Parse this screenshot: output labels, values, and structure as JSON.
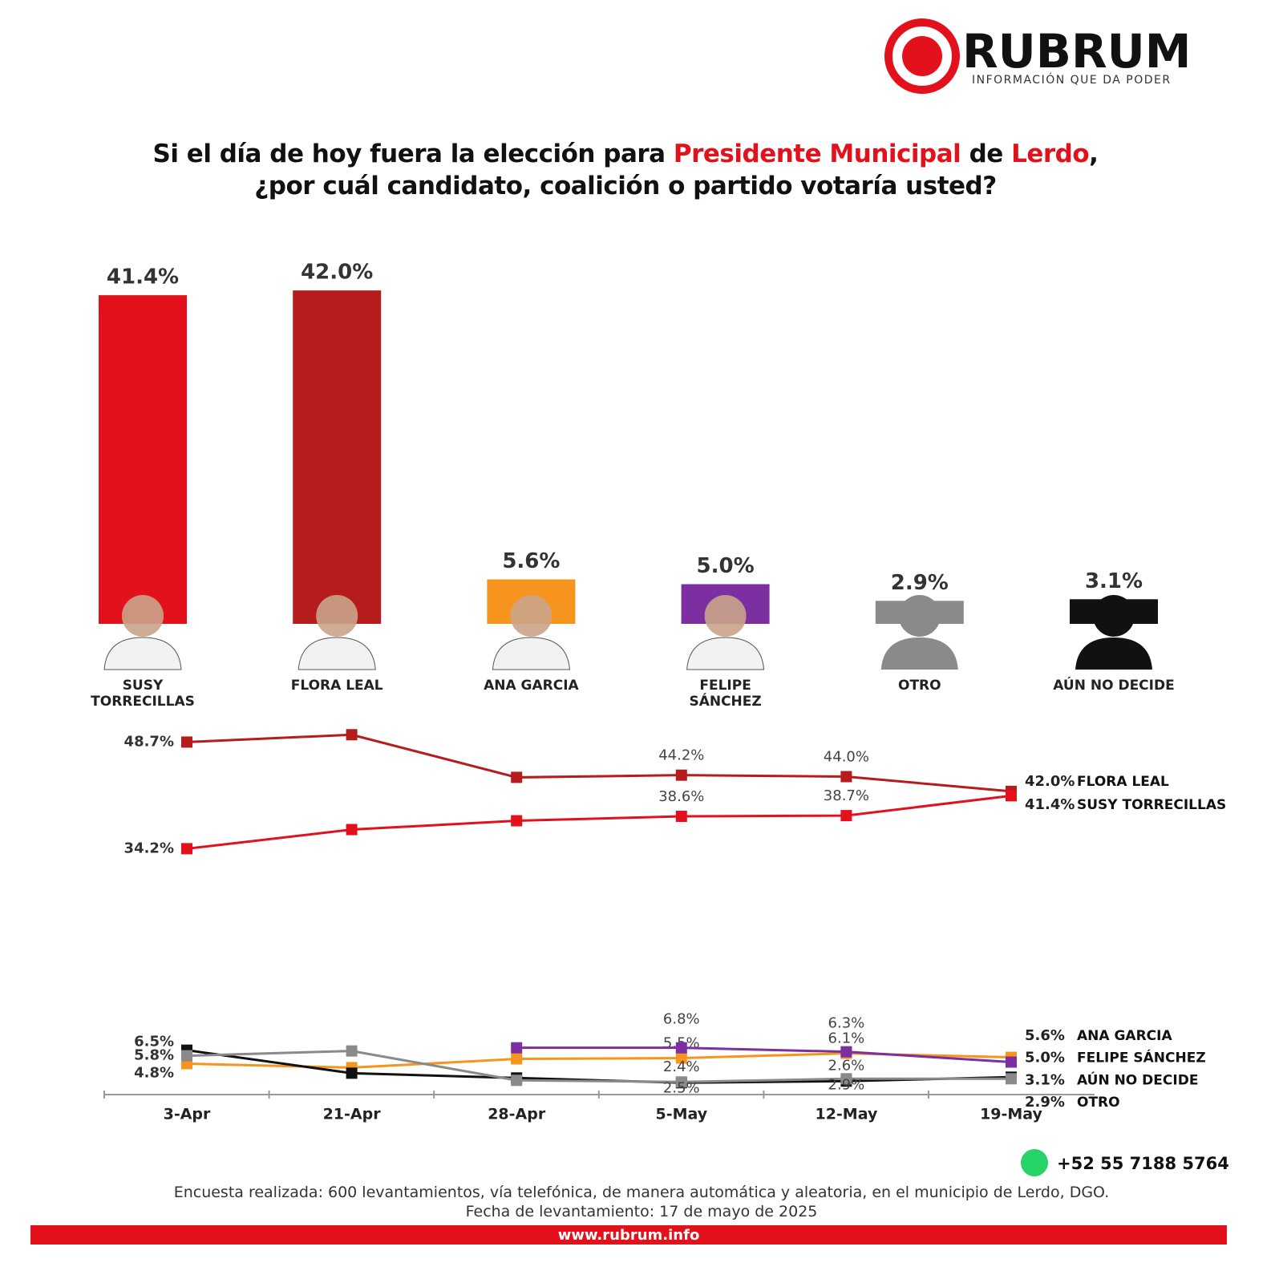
{
  "logo": {
    "name": "RUBRUM",
    "tagline": "INFORMACIÓN QUE DA PODER"
  },
  "title": {
    "line1": [
      "Si el día de hoy fuera la elección para ",
      "Presidente Municipal",
      " de ",
      "Lerdo",
      ","
    ],
    "line2": "¿por cuál candidato, coalición o partido votaría usted?"
  },
  "chart_data": [
    {
      "type": "bar",
      "categories": [
        "SUSY TORRECILLAS",
        "FLORA LEAL",
        "ANA GARCIA",
        "FELIPE SÁNCHEZ",
        "OTRO",
        "AÚN NO DECIDE"
      ],
      "values": [
        41.4,
        42.0,
        5.6,
        5.0,
        2.9,
        3.1
      ],
      "value_labels": [
        "41.4%",
        "42.0%",
        "5.6%",
        "5.0%",
        "2.9%",
        "3.1%"
      ],
      "colors": [
        "#e3111b",
        "#b71c1c",
        "#f7941d",
        "#7b2fa0",
        "#8a8a8a",
        "#111111"
      ]
    },
    {
      "type": "line",
      "categories": [
        "3-Apr",
        "21-Apr",
        "28-Apr",
        "5-May",
        "12-May",
        "19-May"
      ],
      "series": [
        {
          "name": "FLORA LEAL",
          "color": "#b71c1c",
          "values": [
            48.7,
            49.7,
            43.9,
            44.2,
            44.0,
            42.0
          ],
          "value_labels": [
            "48.7%",
            null,
            null,
            "44.2%",
            "44.0%",
            "42.0%"
          ]
        },
        {
          "name": "SUSY TORRECILLAS",
          "color": "#e3111b",
          "values": [
            34.2,
            36.8,
            38.0,
            38.6,
            38.7,
            41.4
          ],
          "value_labels": [
            "34.2%",
            null,
            null,
            "38.6%",
            "38.7%",
            "41.4%"
          ]
        },
        {
          "name": "ANA GARCIA",
          "color": "#f7941d",
          "values": [
            4.8,
            4.3,
            5.4,
            5.5,
            6.1,
            5.6
          ],
          "value_labels": [
            "4.8%",
            null,
            null,
            "5.5%",
            "6.1%",
            "5.6%"
          ]
        },
        {
          "name": "FELIPE SÁNCHEZ",
          "color": "#7b2fa0",
          "values": [
            null,
            null,
            6.8,
            6.8,
            6.3,
            5.0
          ],
          "value_labels": [
            null,
            null,
            null,
            "6.8%",
            "6.3%",
            "5.0%"
          ]
        },
        {
          "name": "AÚN NO DECIDE",
          "color": "#111111",
          "values": [
            6.5,
            3.6,
            3.0,
            2.4,
            2.6,
            3.1
          ],
          "value_labels": [
            "6.5%",
            null,
            null,
            "2.4%",
            "2.6%",
            "3.1%"
          ]
        },
        {
          "name": "OTRO",
          "color": "#8a8a8a",
          "values": [
            5.8,
            6.4,
            2.7,
            2.5,
            2.9,
            2.9
          ],
          "value_labels": [
            "5.8%",
            null,
            null,
            "2.5%",
            "2.9%",
            "2.9%"
          ]
        }
      ]
    }
  ],
  "footer": {
    "phone": "+52 55 7188 5764",
    "note1": "Encuesta realizada: 600 levantamientos, vía telefónica, de manera automática y aleatoria, en el municipio de Lerdo, DGO.",
    "note2": "Fecha de levantamiento: 17 de mayo de 2025",
    "website": "www.rubrum.info"
  }
}
